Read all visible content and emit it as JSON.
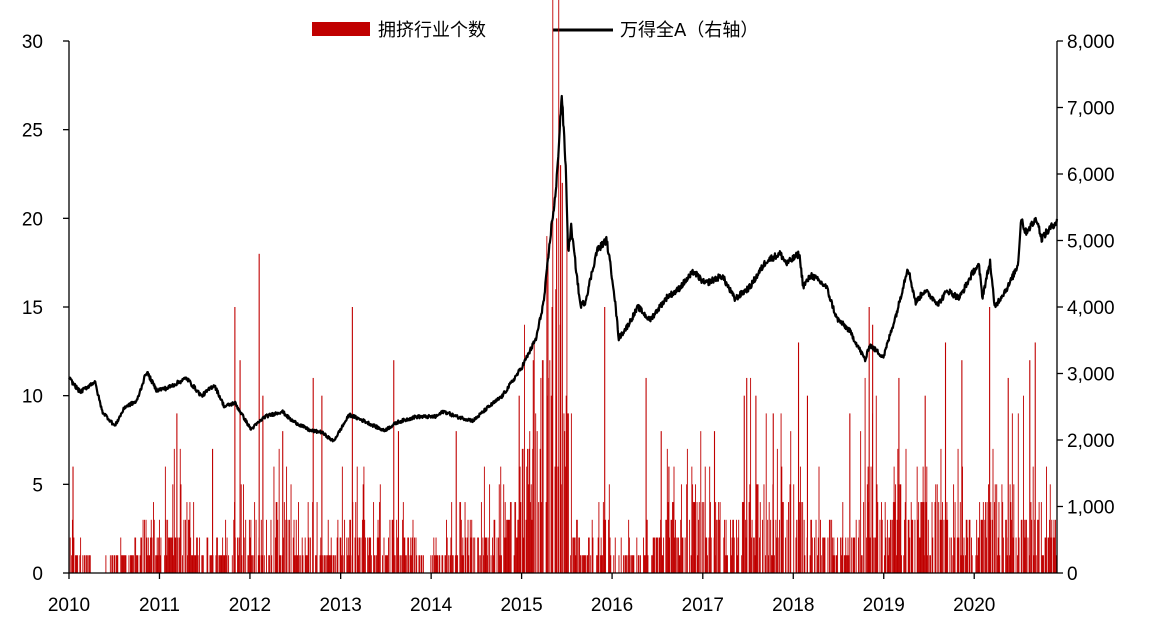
{
  "chart_data": {
    "type": "bar",
    "legend_position": "top-center",
    "grid": false,
    "x_axis": {
      "type": "date",
      "range": [
        "2010-01-01",
        "2020-11-30"
      ],
      "ticks": [
        "2010",
        "2011",
        "2012",
        "2013",
        "2014",
        "2015",
        "2016",
        "2017",
        "2018",
        "2019",
        "2020"
      ]
    },
    "y_left": {
      "range": [
        0,
        30
      ],
      "ticks": [
        "0",
        "5",
        "10",
        "15",
        "20",
        "25",
        "30"
      ]
    },
    "y_right": {
      "range": [
        0,
        8000
      ],
      "ticks": [
        "0",
        "1,000",
        "2,000",
        "3,000",
        "4,000",
        "5,000",
        "6,000",
        "7,000",
        "8,000"
      ]
    },
    "series": [
      {
        "name": "拥挤行业个数",
        "kind": "bar",
        "axis": "left",
        "color": "#C00000",
        "baseline": [
          [
            "2010-01-01",
            2
          ],
          [
            "2010-03-01",
            1
          ],
          [
            "2010-05-01",
            0
          ],
          [
            "2010-07-01",
            1
          ],
          [
            "2010-09-01",
            1
          ],
          [
            "2010-11-01",
            2
          ],
          [
            "2011-01-01",
            2
          ],
          [
            "2011-03-01",
            3
          ],
          [
            "2011-05-01",
            2
          ],
          [
            "2011-07-01",
            1
          ],
          [
            "2011-09-01",
            1
          ],
          [
            "2011-11-01",
            2
          ],
          [
            "2012-01-01",
            2
          ],
          [
            "2012-03-01",
            2
          ],
          [
            "2012-05-01",
            3
          ],
          [
            "2012-07-01",
            2
          ],
          [
            "2012-09-01",
            2
          ],
          [
            "2012-11-01",
            1
          ],
          [
            "2013-01-01",
            2
          ],
          [
            "2013-03-01",
            3
          ],
          [
            "2013-05-01",
            2
          ],
          [
            "2013-07-01",
            2
          ],
          [
            "2013-09-01",
            2
          ],
          [
            "2013-11-01",
            1
          ],
          [
            "2014-01-01",
            1
          ],
          [
            "2014-03-01",
            1
          ],
          [
            "2014-05-01",
            2
          ],
          [
            "2014-07-01",
            2
          ],
          [
            "2014-09-01",
            2
          ],
          [
            "2014-11-01",
            3
          ],
          [
            "2015-01-01",
            5
          ],
          [
            "2015-03-01",
            7
          ],
          [
            "2015-05-01",
            12
          ],
          [
            "2015-06-15",
            14
          ],
          [
            "2015-07-15",
            5
          ],
          [
            "2015-09-01",
            1
          ],
          [
            "2015-11-01",
            3
          ],
          [
            "2016-01-01",
            2
          ],
          [
            "2016-03-01",
            1
          ],
          [
            "2016-05-01",
            1
          ],
          [
            "2016-07-01",
            2
          ],
          [
            "2016-09-01",
            3
          ],
          [
            "2016-11-01",
            4
          ],
          [
            "2017-01-01",
            3
          ],
          [
            "2017-03-01",
            3
          ],
          [
            "2017-05-01",
            2
          ],
          [
            "2017-07-01",
            4
          ],
          [
            "2017-09-01",
            4
          ],
          [
            "2017-11-01",
            3
          ],
          [
            "2018-01-01",
            4
          ],
          [
            "2018-03-01",
            3
          ],
          [
            "2018-05-01",
            2
          ],
          [
            "2018-07-01",
            2
          ],
          [
            "2018-09-01",
            2
          ],
          [
            "2018-11-01",
            5
          ],
          [
            "2019-01-01",
            3
          ],
          [
            "2019-03-01",
            4
          ],
          [
            "2019-05-01",
            3
          ],
          [
            "2019-07-01",
            3
          ],
          [
            "2019-09-01",
            4
          ],
          [
            "2019-11-01",
            3
          ],
          [
            "2020-01-01",
            2
          ],
          [
            "2020-03-01",
            4
          ],
          [
            "2020-05-01",
            3
          ],
          [
            "2020-07-01",
            4
          ],
          [
            "2020-09-01",
            3
          ],
          [
            "2020-11-30",
            2
          ]
        ],
        "spikes": [
          [
            "2010-01-15",
            6
          ],
          [
            "2011-03-10",
            9
          ],
          [
            "2011-08-01",
            7
          ],
          [
            "2011-10-30",
            15
          ],
          [
            "2011-11-20",
            12
          ],
          [
            "2012-02-05",
            18
          ],
          [
            "2012-02-20",
            10
          ],
          [
            "2012-05-10",
            8
          ],
          [
            "2012-09-10",
            11
          ],
          [
            "2012-10-15",
            10
          ],
          [
            "2013-02-15",
            15
          ],
          [
            "2013-08-01",
            12
          ],
          [
            "2013-08-20",
            8
          ],
          [
            "2014-04-10",
            8
          ],
          [
            "2014-12-20",
            10
          ],
          [
            "2015-02-15",
            12
          ],
          [
            "2015-04-15",
            18
          ],
          [
            "2015-05-20",
            20
          ],
          [
            "2015-06-05",
            23
          ],
          [
            "2015-06-12",
            22
          ],
          [
            "2015-11-30",
            15
          ],
          [
            "2016-05-15",
            11
          ],
          [
            "2016-07-15",
            8
          ],
          [
            "2016-08-15",
            6
          ],
          [
            "2017-02-15",
            8
          ],
          [
            "2017-06-15",
            10
          ],
          [
            "2017-06-25",
            11
          ],
          [
            "2017-08-01",
            10
          ],
          [
            "2017-10-10",
            9
          ],
          [
            "2018-01-20",
            13
          ],
          [
            "2018-02-25",
            10
          ],
          [
            "2018-08-15",
            9
          ],
          [
            "2018-11-01",
            15
          ],
          [
            "2018-11-15",
            14
          ],
          [
            "2019-03-01",
            11
          ],
          [
            "2019-06-15",
            10
          ],
          [
            "2019-09-05",
            13
          ],
          [
            "2019-11-10",
            12
          ],
          [
            "2020-03-01",
            15
          ],
          [
            "2020-05-15",
            11
          ],
          [
            "2020-08-10",
            12
          ],
          [
            "2020-09-01",
            13
          ]
        ]
      },
      {
        "name": "万得全A（右轴）",
        "kind": "line",
        "axis": "right",
        "color": "#000000",
        "points": [
          [
            "2010-01-01",
            2930
          ],
          [
            "2010-02-15",
            2720
          ],
          [
            "2010-04-15",
            2880
          ],
          [
            "2010-05-15",
            2430
          ],
          [
            "2010-07-05",
            2210
          ],
          [
            "2010-08-15",
            2500
          ],
          [
            "2010-10-01",
            2580
          ],
          [
            "2010-11-10",
            3030
          ],
          [
            "2010-12-20",
            2750
          ],
          [
            "2011-02-01",
            2780
          ],
          [
            "2011-04-20",
            2930
          ],
          [
            "2011-06-20",
            2660
          ],
          [
            "2011-08-10",
            2830
          ],
          [
            "2011-09-20",
            2500
          ],
          [
            "2011-11-01",
            2560
          ],
          [
            "2012-01-05",
            2160
          ],
          [
            "2012-03-01",
            2350
          ],
          [
            "2012-05-10",
            2430
          ],
          [
            "2012-06-15",
            2300
          ],
          [
            "2012-09-01",
            2140
          ],
          [
            "2012-10-15",
            2120
          ],
          [
            "2012-12-03",
            1980
          ],
          [
            "2013-02-05",
            2380
          ],
          [
            "2013-04-15",
            2270
          ],
          [
            "2013-06-25",
            2140
          ],
          [
            "2013-08-20",
            2270
          ],
          [
            "2013-11-01",
            2350
          ],
          [
            "2014-01-20",
            2350
          ],
          [
            "2014-02-20",
            2430
          ],
          [
            "2014-04-15",
            2350
          ],
          [
            "2014-06-20",
            2290
          ],
          [
            "2014-08-15",
            2480
          ],
          [
            "2014-10-15",
            2660
          ],
          [
            "2014-12-31",
            3080
          ],
          [
            "2015-03-01",
            3530
          ],
          [
            "2015-04-01",
            4100
          ],
          [
            "2015-05-01",
            5200
          ],
          [
            "2015-05-20",
            5750
          ],
          [
            "2015-06-12",
            7200
          ],
          [
            "2015-06-28",
            6100
          ],
          [
            "2015-07-08",
            4830
          ],
          [
            "2015-07-20",
            5200
          ],
          [
            "2015-08-26",
            4020
          ],
          [
            "2015-09-15",
            4080
          ],
          [
            "2015-11-01",
            4850
          ],
          [
            "2015-12-10",
            5010
          ],
          [
            "2016-01-07",
            4300
          ],
          [
            "2016-01-28",
            3530
          ],
          [
            "2016-03-01",
            3700
          ],
          [
            "2016-04-15",
            4000
          ],
          [
            "2016-06-01",
            3800
          ],
          [
            "2016-08-10",
            4150
          ],
          [
            "2016-09-20",
            4250
          ],
          [
            "2016-11-25",
            4530
          ],
          [
            "2017-01-10",
            4350
          ],
          [
            "2017-03-20",
            4470
          ],
          [
            "2017-05-10",
            4120
          ],
          [
            "2017-07-10",
            4300
          ],
          [
            "2017-09-15",
            4700
          ],
          [
            "2017-11-10",
            4800
          ],
          [
            "2017-12-05",
            4650
          ],
          [
            "2018-01-25",
            4800
          ],
          [
            "2018-02-10",
            4310
          ],
          [
            "2018-03-15",
            4480
          ],
          [
            "2018-05-15",
            4300
          ],
          [
            "2018-06-25",
            3830
          ],
          [
            "2018-08-15",
            3650
          ],
          [
            "2018-10-19",
            3200
          ],
          [
            "2018-11-05",
            3430
          ],
          [
            "2018-12-31",
            3250
          ],
          [
            "2019-02-25",
            3950
          ],
          [
            "2019-04-08",
            4600
          ],
          [
            "2019-05-10",
            4070
          ],
          [
            "2019-06-15",
            4250
          ],
          [
            "2019-08-10",
            4050
          ],
          [
            "2019-09-15",
            4250
          ],
          [
            "2019-11-01",
            4130
          ],
          [
            "2019-12-31",
            4550
          ],
          [
            "2020-01-20",
            4620
          ],
          [
            "2020-02-03",
            4150
          ],
          [
            "2020-03-05",
            4680
          ],
          [
            "2020-03-23",
            4000
          ],
          [
            "2020-05-20",
            4330
          ],
          [
            "2020-06-25",
            4630
          ],
          [
            "2020-07-09",
            5350
          ],
          [
            "2020-07-25",
            5120
          ],
          [
            "2020-09-10",
            5330
          ],
          [
            "2020-09-28",
            5030
          ],
          [
            "2020-11-30",
            5300
          ]
        ]
      }
    ]
  }
}
